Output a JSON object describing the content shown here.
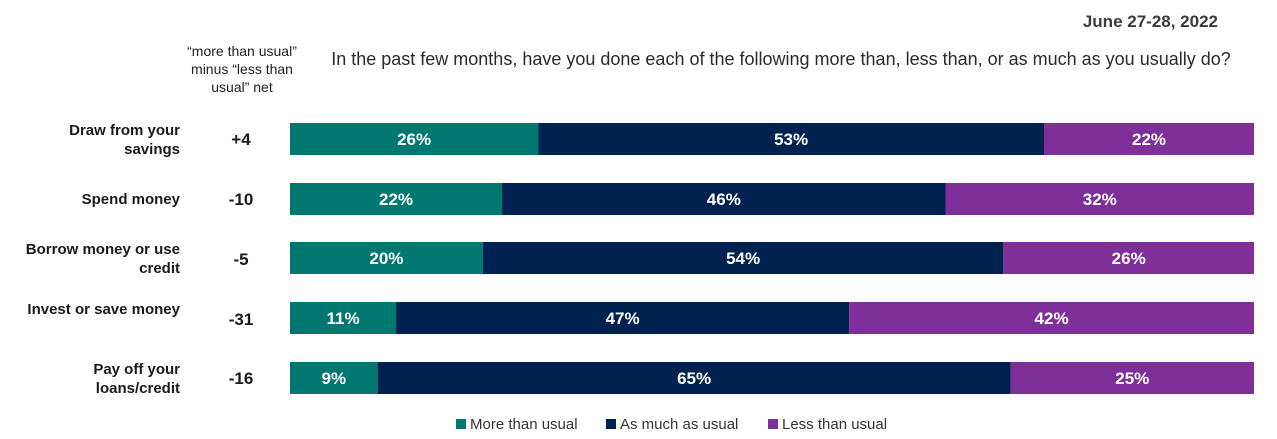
{
  "date": "June 27-28, 2022",
  "net_header": "“more than usual” minus “less than usual” net",
  "question": "In the past few months, have you done each of the following more than, less than, or as much as you usually do?",
  "colors": {
    "more": "#00776f",
    "as_much": "#002250",
    "less": "#7f2f9a"
  },
  "chart_data": {
    "type": "bar",
    "orientation": "horizontal",
    "stacked": true,
    "title": "In the past few months, have you done each of the following more than, less than, or as much as you usually do?",
    "categories": [
      "Draw from your savings",
      "Spend money",
      "Borrow money or use credit",
      "Invest or save money",
      "Pay off your loans/credit"
    ],
    "net": [
      "+4",
      "-10",
      "-5",
      "-31",
      "-16"
    ],
    "series": [
      {
        "name": "More than usual",
        "values": [
          26,
          22,
          20,
          11,
          9
        ],
        "labels": [
          "26%",
          "22%",
          "20%",
          "11%",
          "9%"
        ]
      },
      {
        "name": "As much as usual",
        "values": [
          53,
          46,
          54,
          47,
          65
        ],
        "labels": [
          "53%",
          "46%",
          "54%",
          "47%",
          "65%"
        ]
      },
      {
        "name": "Less than usual",
        "values": [
          22,
          32,
          26,
          42,
          25
        ],
        "labels": [
          "22%",
          "32%",
          "26%",
          "42%",
          "25%"
        ]
      }
    ],
    "legend_position": "bottom",
    "grid": false
  }
}
